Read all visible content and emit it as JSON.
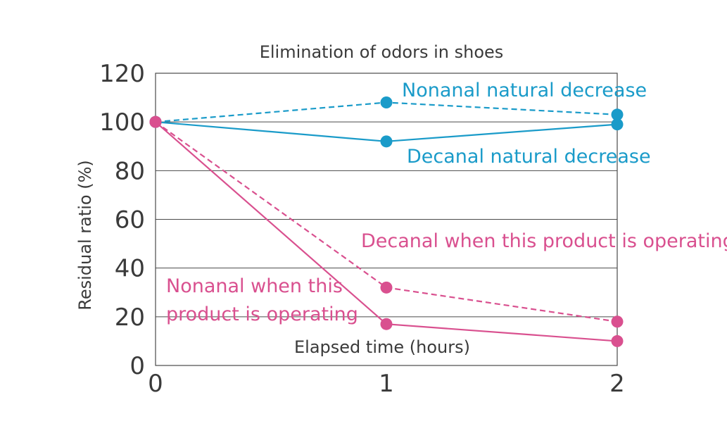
{
  "chart_data": {
    "type": "line",
    "title": "Elimination of odors in shoes",
    "xlabel": "Elapsed time (hours)",
    "ylabel": "Residual ratio (%)",
    "x": [
      0,
      1,
      2
    ],
    "x_ticks": [
      "0",
      "1",
      "2"
    ],
    "ylim": [
      0,
      120
    ],
    "y_ticks": [
      "0",
      "20",
      "40",
      "60",
      "80",
      "100",
      "120"
    ],
    "grid": true,
    "series": [
      {
        "name": "Nonanal natural decrease",
        "values": [
          100,
          108,
          103
        ],
        "color": "#1a9bc9",
        "dash": true
      },
      {
        "name": "Decanal natural decrease",
        "values": [
          100,
          92,
          99
        ],
        "color": "#1a9bc9",
        "dash": false
      },
      {
        "name": "Decanal when this product is operating",
        "values": [
          100,
          32,
          18
        ],
        "color": "#d9508f",
        "dash": true
      },
      {
        "name": "Nonanal when this product is operating",
        "label_lines": [
          "Nonanal when this",
          "product is operating"
        ],
        "values": [
          100,
          17,
          10
        ],
        "color": "#d9508f",
        "dash": false
      }
    ]
  }
}
